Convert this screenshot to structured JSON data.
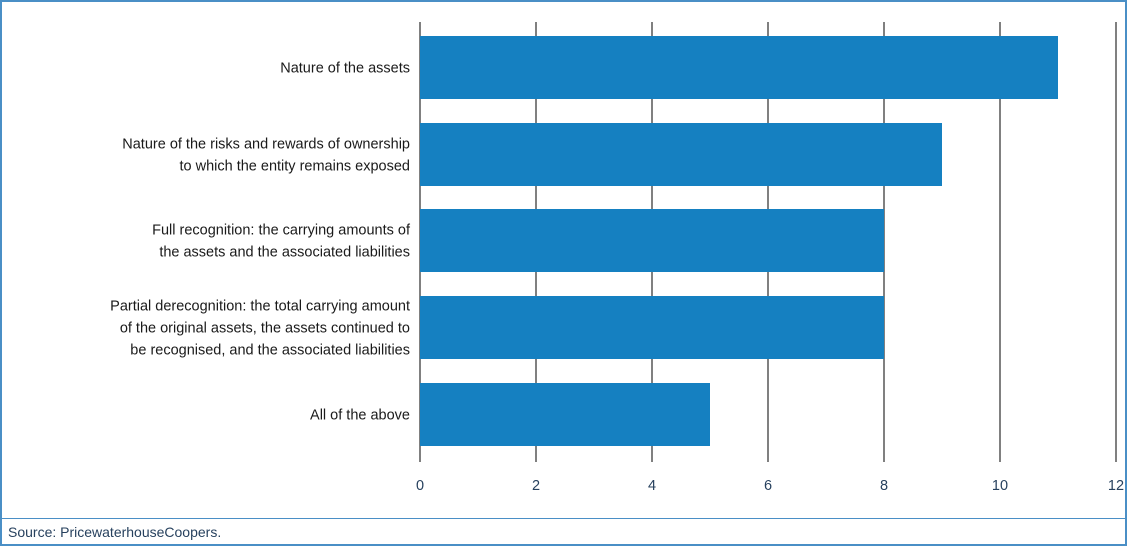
{
  "chart_data": {
    "type": "bar",
    "orientation": "horizontal",
    "categories": [
      [
        "Nature of the assets"
      ],
      [
        "Nature of the risks and rewards of ownership",
        "to which the entity remains exposed"
      ],
      [
        "Full recognition: the carrying amounts of",
        "the assets and the associated liabilities"
      ],
      [
        "Partial derecognition: the total carrying amount",
        "of the original assets, the assets continued to",
        "be recognised, and the associated liabilities"
      ],
      [
        "All of the above"
      ]
    ],
    "values": [
      11,
      9,
      8,
      8,
      5
    ],
    "xlim": [
      0,
      12
    ],
    "xticks": [
      0,
      2,
      4,
      6,
      8,
      10,
      12
    ],
    "grid": "vertical",
    "bar_color": "#1580c1"
  },
  "source": "Source: PricewaterhouseCoopers."
}
